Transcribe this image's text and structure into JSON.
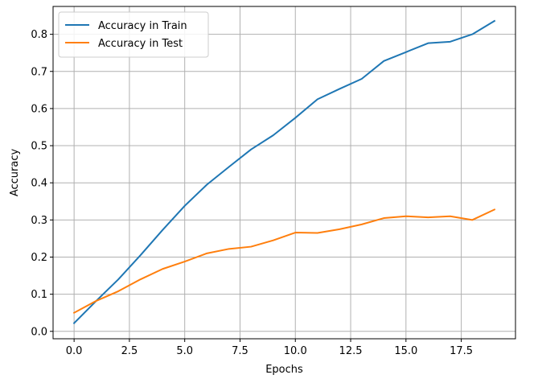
{
  "chart_data": {
    "type": "line",
    "title": "",
    "xlabel": "Epochs",
    "ylabel": "Accuracy",
    "xlim": [
      -0.95,
      19.95
    ],
    "ylim": [
      -0.02,
      0.875
    ],
    "xticks": [
      0.0,
      2.5,
      5.0,
      7.5,
      10.0,
      12.5,
      15.0,
      17.5
    ],
    "xtick_labels": [
      "0.0",
      "2.5",
      "5.0",
      "7.5",
      "10.0",
      "12.5",
      "15.0",
      "17.5"
    ],
    "yticks": [
      0.0,
      0.1,
      0.2,
      0.3,
      0.4,
      0.5,
      0.6,
      0.7,
      0.8
    ],
    "ytick_labels": [
      "0.0",
      "0.1",
      "0.2",
      "0.3",
      "0.4",
      "0.5",
      "0.6",
      "0.7",
      "0.8"
    ],
    "grid": true,
    "legend_position": "top-left",
    "x": [
      0,
      1,
      2,
      3,
      4,
      5,
      6,
      7,
      8,
      9,
      10,
      11,
      12,
      13,
      14,
      15,
      16,
      17,
      18,
      19
    ],
    "series": [
      {
        "name": "Accuracy in Train",
        "color": "#1f77b4",
        "values": [
          0.022,
          0.082,
          0.14,
          0.205,
          0.273,
          0.338,
          0.395,
          0.443,
          0.49,
          0.528,
          0.575,
          0.625,
          0.653,
          0.68,
          0.728,
          0.752,
          0.776,
          0.78,
          0.8,
          0.836
        ]
      },
      {
        "name": "Accuracy in Test",
        "color": "#ff7f0e",
        "values": [
          0.05,
          0.082,
          0.108,
          0.14,
          0.168,
          0.188,
          0.21,
          0.222,
          0.228,
          0.245,
          0.266,
          0.265,
          0.275,
          0.288,
          0.305,
          0.31,
          0.307,
          0.31,
          0.3,
          0.328
        ]
      }
    ]
  }
}
